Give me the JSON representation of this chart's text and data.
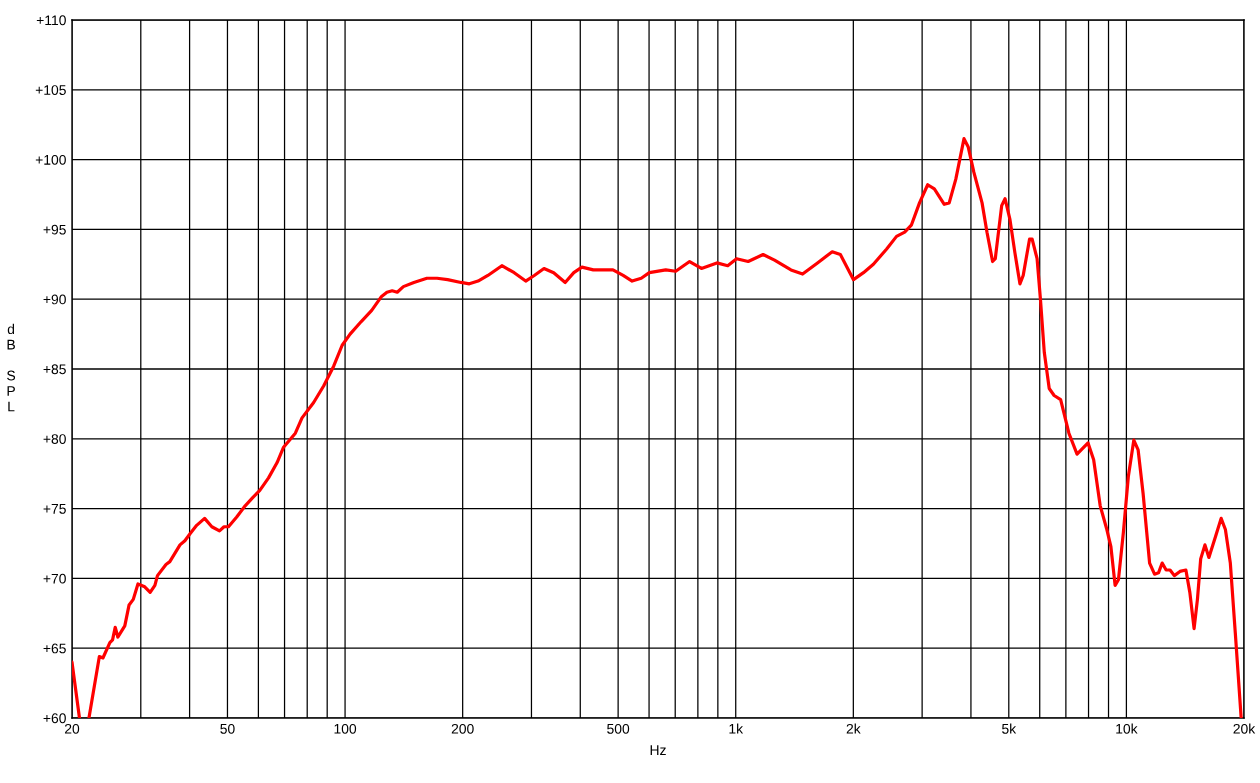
{
  "chart_data": {
    "type": "line",
    "xlabel": "Hz",
    "ylabel": "dB SPL",
    "log": "x",
    "grid": true,
    "xlim": [
      20,
      20000
    ],
    "ylim": [
      60,
      110
    ],
    "xticks": [
      20,
      {
        "value": 30,
        "label": null
      },
      {
        "value": 40,
        "label": null
      },
      50,
      {
        "value": 60,
        "label": null
      },
      {
        "value": 70,
        "label": null
      },
      {
        "value": 80,
        "label": null
      },
      {
        "value": 90,
        "label": null
      },
      100,
      200,
      {
        "value": 300,
        "label": null
      },
      {
        "value": 400,
        "label": null
      },
      500,
      {
        "value": 600,
        "label": null
      },
      {
        "value": 700,
        "label": null
      },
      {
        "value": 800,
        "label": null
      },
      {
        "value": 900,
        "label": null
      },
      {
        "value": 1000,
        "label": "1k"
      },
      {
        "value": 2000,
        "label": "2k"
      },
      {
        "value": 3000,
        "label": null
      },
      {
        "value": 4000,
        "label": null
      },
      {
        "value": 5000,
        "label": "5k"
      },
      {
        "value": 6000,
        "label": null
      },
      {
        "value": 7000,
        "label": null
      },
      {
        "value": 8000,
        "label": null
      },
      {
        "value": 9000,
        "label": null
      },
      {
        "value": 10000,
        "label": "10k"
      },
      {
        "value": 20000,
        "label": "20k"
      }
    ],
    "yticks": [
      {
        "value": 60,
        "label": "+60"
      },
      {
        "value": 65,
        "label": "+65"
      },
      {
        "value": 70,
        "label": "+70"
      },
      {
        "value": 75,
        "label": "+75"
      },
      {
        "value": 80,
        "label": "+80"
      },
      {
        "value": 85,
        "label": "+85"
      },
      {
        "value": 90,
        "label": "+90"
      },
      {
        "value": 95,
        "label": "+95"
      },
      {
        "value": 100,
        "label": "+100"
      },
      {
        "value": 105,
        "label": "+105"
      },
      {
        "value": 110,
        "label": "+110"
      }
    ],
    "series": [
      {
        "color": "#ff0000",
        "x": [
          20,
          20.9,
          21.5,
          22.1,
          23.5,
          24.0,
          25.0,
          25.4,
          25.8,
          26.2,
          27.3,
          28.0,
          28.7,
          29.5,
          30.7,
          31.7,
          32.6,
          33.1,
          34.8,
          35.6,
          37.8,
          38.9,
          40.1,
          41.7,
          43.7,
          45.6,
          47.7,
          49.0,
          50.3,
          52.8,
          55.5,
          58.1,
          60.5,
          63.7,
          67.0,
          69.6,
          74.6,
          77.6,
          83.1,
          88.2,
          93.5,
          98.3,
          103,
          110,
          117,
          124,
          128,
          132,
          136,
          141,
          150,
          162,
          172,
          183,
          198,
          208,
          219,
          232,
          252,
          271,
          290,
          305,
          323,
          342,
          366,
          385,
          404,
          432,
          485,
          515,
          543,
          573,
          601,
          662,
          702,
          762,
          817,
          895,
          954,
          1005,
          1076,
          1175,
          1257,
          1385,
          1483,
          1619,
          1766,
          1853,
          2002,
          2123,
          2251,
          2434,
          2580,
          2707,
          2815,
          2954,
          3100,
          3224,
          3418,
          3519,
          3659,
          3840,
          3937,
          4069,
          4271,
          4397,
          4545,
          4617,
          4795,
          4891,
          5035,
          5185,
          5339,
          5443,
          5650,
          5738,
          5907,
          6025,
          6163,
          6345,
          6532,
          6787,
          7126,
          7476,
          7976,
          8245,
          8569,
          8912,
          9124,
          9357,
          9541,
          9824,
          10115,
          10446,
          10716,
          11033,
          11466,
          11805,
          12083,
          12347,
          12637,
          12935,
          13264,
          13712,
          14200,
          14534,
          14903,
          15200,
          15494,
          15888,
          16262,
          16911,
          17479,
          17923,
          18452,
          19000,
          19670
        ],
        "values": [
          64.0,
          60,
          null,
          60,
          64.4,
          64.3,
          65.4,
          65.6,
          66.5,
          65.8,
          66.6,
          68.1,
          68.5,
          69.6,
          69.4,
          69.0,
          69.5,
          70.2,
          71.0,
          71.2,
          72.4,
          72.7,
          73.2,
          73.8,
          74.3,
          73.7,
          73.4,
          73.7,
          73.7,
          74.4,
          75.2,
          75.8,
          76.3,
          77.2,
          78.3,
          79.4,
          80.4,
          81.5,
          82.6,
          83.8,
          85.2,
          86.7,
          87.5,
          88.4,
          89.2,
          90.2,
          90.5,
          90.6,
          90.5,
          90.9,
          91.2,
          91.5,
          91.5,
          91.4,
          91.2,
          91.1,
          91.3,
          91.7,
          92.4,
          91.9,
          91.3,
          91.7,
          92.2,
          91.9,
          91.2,
          91.9,
          92.3,
          92.1,
          92.1,
          91.7,
          91.3,
          91.5,
          91.9,
          92.1,
          92.0,
          92.7,
          92.2,
          92.6,
          92.4,
          92.9,
          92.7,
          93.2,
          92.8,
          92.1,
          91.8,
          92.6,
          93.4,
          93.2,
          91.4,
          91.9,
          92.5,
          93.6,
          94.5,
          94.8,
          95.3,
          96.9,
          98.2,
          97.9,
          96.8,
          96.9,
          98.6,
          101.5,
          100.9,
          99.1,
          96.9,
          94.8,
          92.7,
          92.9,
          96.7,
          97.2,
          95.7,
          93.3,
          91.1,
          91.7,
          94.3,
          94.3,
          92.9,
          90.0,
          86.2,
          83.6,
          83.1,
          82.8,
          80.4,
          78.9,
          79.7,
          78.5,
          75.2,
          73.5,
          72.3,
          69.5,
          69.9,
          73.3,
          77.3,
          79.9,
          79.2,
          76.1,
          71.1,
          70.3,
          70.4,
          71.1,
          70.6,
          70.6,
          70.2,
          70.5,
          70.6,
          69.0,
          66.4,
          68.5,
          71.4,
          72.4,
          71.5,
          73.0,
          74.3,
          73.5,
          71.1,
          66.1,
          60
        ]
      }
    ]
  }
}
